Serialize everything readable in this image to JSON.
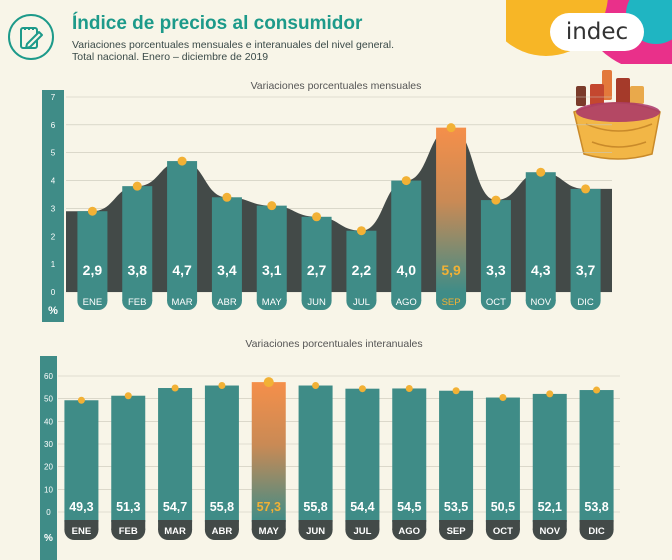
{
  "header": {
    "title": "Índice de precios al consumidor",
    "subtitle_line1": "Variaciones porcentuales mensuales e interanuales del nivel general.",
    "subtitle_line2": "Total nacional. Enero – diciembre de 2019",
    "logo_text": "indec",
    "icon": "clipboard-pencil-icon",
    "illustration": "shopping-basket-icon"
  },
  "colors": {
    "teal": "#3f8c87",
    "dark": "#434a48",
    "accent": "#f2b135",
    "highlight_top": "#f58f4a",
    "background": "#f8f5e8",
    "title": "#1d9a8a"
  },
  "chart_data": [
    {
      "type": "bar",
      "title": "Variaciones porcentuales mensuales",
      "categories": [
        "ENE",
        "FEB",
        "MAR",
        "ABR",
        "MAY",
        "JUN",
        "JUL",
        "AGO",
        "SEP",
        "OCT",
        "NOV",
        "DIC"
      ],
      "values": [
        2.9,
        3.8,
        4.7,
        3.4,
        3.1,
        2.7,
        2.2,
        4.0,
        5.9,
        3.3,
        4.3,
        3.7
      ],
      "value_labels": [
        "2,9",
        "3,8",
        "4,7",
        "3,4",
        "3,1",
        "2,7",
        "2,2",
        "4,0",
        "5,9",
        "3,3",
        "4,3",
        "3,7"
      ],
      "highlight": "SEP",
      "ylim": [
        0,
        7
      ],
      "yticks": [
        "0",
        "1",
        "2",
        "3",
        "4",
        "5",
        "6",
        "7"
      ],
      "ylabel": "%",
      "grid": true
    },
    {
      "type": "bar",
      "title": "Variaciones porcentuales interanuales",
      "categories": [
        "ENE",
        "FEB",
        "MAR",
        "ABR",
        "MAY",
        "JUN",
        "JUL",
        "AGO",
        "SEP",
        "OCT",
        "NOV",
        "DIC"
      ],
      "values": [
        49.3,
        51.3,
        54.7,
        55.8,
        57.3,
        55.8,
        54.4,
        54.5,
        53.5,
        50.5,
        52.1,
        53.8
      ],
      "value_labels": [
        "49,3",
        "51,3",
        "54,7",
        "55,8",
        "57,3",
        "55,8",
        "54,4",
        "54,5",
        "53,5",
        "50,5",
        "52,1",
        "53,8"
      ],
      "highlight": "MAY",
      "ylim": [
        0,
        60
      ],
      "yticks": [
        "0",
        "10",
        "20",
        "30",
        "40",
        "50",
        "60"
      ],
      "ylabel": "%",
      "grid": true
    }
  ]
}
